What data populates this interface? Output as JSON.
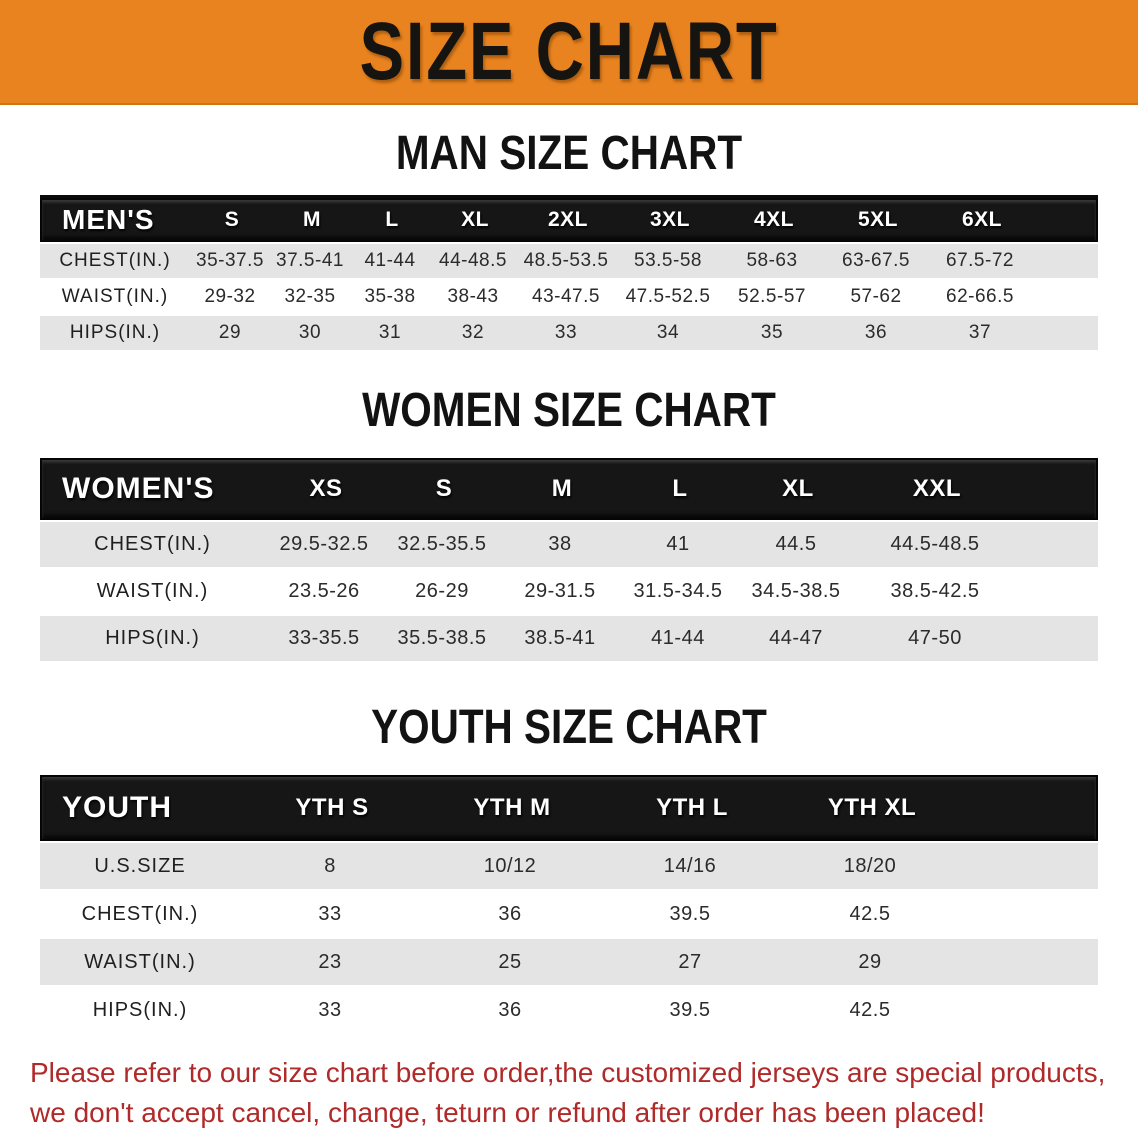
{
  "banner": {
    "title": "SIZE CHART"
  },
  "colors": {
    "banner_bg": "#E9831F",
    "table_header_bg": "#161616",
    "row_shade": "#E4E4E4",
    "footer_text": "#B02A2A"
  },
  "sections": [
    {
      "heading": "MAN SIZE CHART",
      "table": {
        "header_label": "MEN'S",
        "columns": [
          "S",
          "M",
          "L",
          "XL",
          "2XL",
          "3XL",
          "4XL",
          "5XL",
          "6XL"
        ],
        "rows": [
          {
            "label": "CHEST(IN.)",
            "values": [
              "35-37.5",
              "37.5-41",
              "41-44",
              "44-48.5",
              "48.5-53.5",
              "53.5-58",
              "58-63",
              "63-67.5",
              "67.5-72"
            ]
          },
          {
            "label": "WAIST(IN.)",
            "values": [
              "29-32",
              "32-35",
              "35-38",
              "38-43",
              "43-47.5",
              "47.5-52.5",
              "52.5-57",
              "57-62",
              "62-66.5"
            ]
          },
          {
            "label": "HIPS(IN.)",
            "values": [
              "29",
              "30",
              "31",
              "32",
              "33",
              "34",
              "35",
              "36",
              "37"
            ]
          }
        ]
      }
    },
    {
      "heading": "WOMEN SIZE CHART",
      "table": {
        "header_label": "WOMEN'S",
        "columns": [
          "XS",
          "S",
          "M",
          "L",
          "XL",
          "XXL"
        ],
        "rows": [
          {
            "label": "CHEST(IN.)",
            "values": [
              "29.5-32.5",
              "32.5-35.5",
              "38",
              "41",
              "44.5",
              "44.5-48.5"
            ]
          },
          {
            "label": "WAIST(IN.)",
            "values": [
              "23.5-26",
              "26-29",
              "29-31.5",
              "31.5-34.5",
              "34.5-38.5",
              "38.5-42.5"
            ]
          },
          {
            "label": "HIPS(IN.)",
            "values": [
              "33-35.5",
              "35.5-38.5",
              "38.5-41",
              "41-44",
              "44-47",
              "47-50"
            ]
          }
        ]
      }
    },
    {
      "heading": "YOUTH SIZE CHART",
      "table": {
        "header_label": "YOUTH",
        "columns": [
          "YTH S",
          "YTH M",
          "YTH L",
          "YTH XL"
        ],
        "rows": [
          {
            "label": "U.S.SIZE",
            "values": [
              "8",
              "10/12",
              "14/16",
              "18/20"
            ]
          },
          {
            "label": "CHEST(IN.)",
            "values": [
              "33",
              "36",
              "39.5",
              "42.5"
            ]
          },
          {
            "label": "WAIST(IN.)",
            "values": [
              "23",
              "25",
              "27",
              "29"
            ]
          },
          {
            "label": "HIPS(IN.)",
            "values": [
              "33",
              "36",
              "39.5",
              "42.5"
            ]
          }
        ]
      }
    }
  ],
  "footer": {
    "line1": "Please refer to our size chart before order,the customized jerseys are special products,",
    "line2": "we don't accept cancel, change, teturn or refund after order has been placed!"
  }
}
